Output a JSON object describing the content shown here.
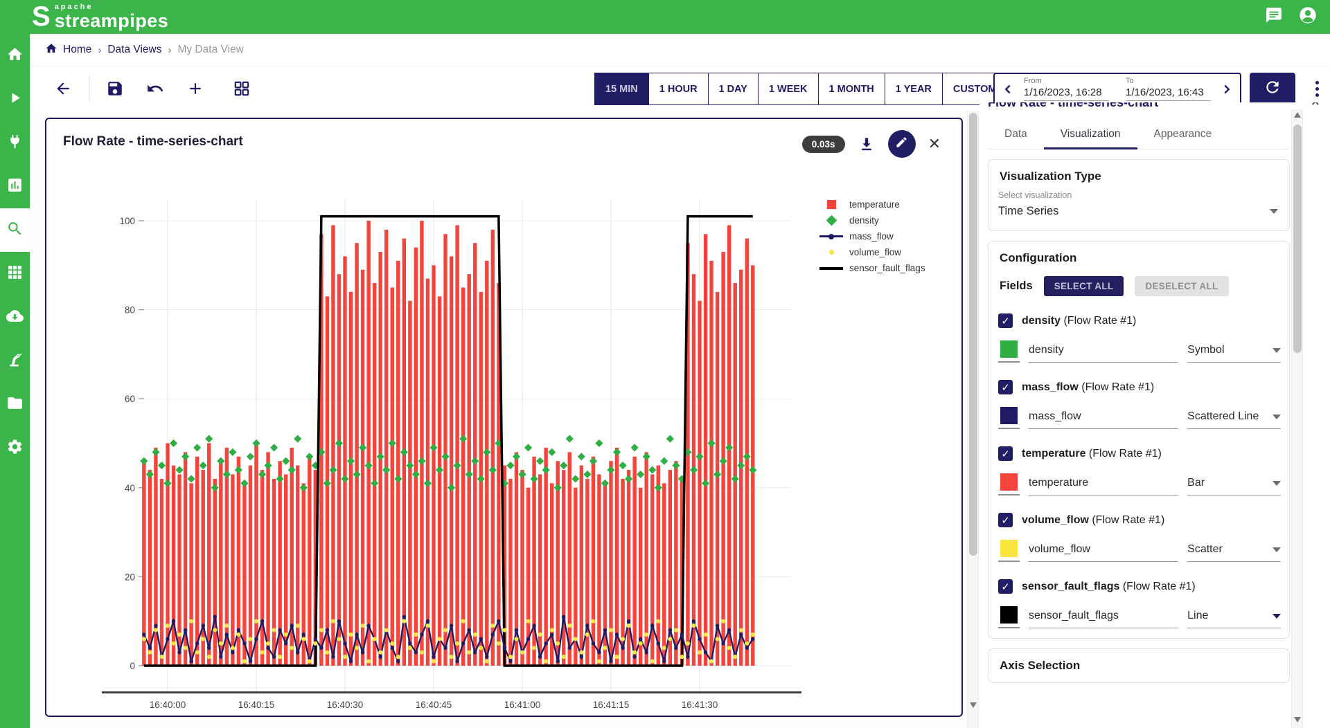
{
  "header": {
    "logo_top": "apache",
    "logo_text": "streampipes"
  },
  "sidebar": {
    "items": [
      {
        "icon": "home-icon",
        "active": false
      },
      {
        "icon": "play-icon",
        "active": false
      },
      {
        "icon": "plug-icon",
        "active": false
      },
      {
        "icon": "bar-chart-icon",
        "active": false
      },
      {
        "icon": "search-icon",
        "active": true
      },
      {
        "icon": "grid-icon",
        "active": false
      },
      {
        "icon": "cloud-download-icon",
        "active": false
      },
      {
        "icon": "robot-arm-icon",
        "active": false
      },
      {
        "icon": "folder-icon",
        "active": false
      },
      {
        "icon": "gear-icon",
        "active": false
      }
    ]
  },
  "breadcrumb": {
    "items": [
      "Home",
      "Data Views",
      "My Data View"
    ],
    "separator": "›"
  },
  "toolbar": {
    "time_buttons": [
      {
        "label": "15 MIN",
        "active": true
      },
      {
        "label": "1 HOUR",
        "active": false
      },
      {
        "label": "1 DAY",
        "active": false
      },
      {
        "label": "1 WEEK",
        "active": false
      },
      {
        "label": "1 MONTH",
        "active": false
      },
      {
        "label": "1 YEAR",
        "active": false
      },
      {
        "label": "CUSTOM",
        "active": false
      }
    ],
    "from_label": "From",
    "from_value": "1/16/2023, 16:28",
    "to_label": "To",
    "to_value": "1/16/2023, 16:43"
  },
  "chart_card": {
    "title": "Flow Rate - time-series-chart",
    "duration_badge": "0.03s"
  },
  "chart_data": {
    "type": "mixed-time-series",
    "title": "Flow Rate - time-series-chart",
    "x_start": "16:39:56",
    "x_interval_seconds": 1,
    "x_tick_labels": [
      "16:40:00",
      "16:40:15",
      "16:40:30",
      "16:40:45",
      "16:41:00",
      "16:41:15",
      "16:41:30"
    ],
    "x_tick_offsets": [
      4,
      19,
      34,
      49,
      64,
      79,
      94
    ],
    "ylim": [
      -6,
      105
    ],
    "yticks": [
      0,
      20,
      40,
      60,
      80,
      100
    ],
    "grid": true,
    "legend_position": "right",
    "series": [
      {
        "name": "temperature",
        "type": "bar",
        "color": "#f4443c",
        "values": [
          46,
          44,
          49,
          42,
          50,
          45,
          43,
          48,
          41,
          47,
          44,
          50,
          42,
          46,
          49,
          43,
          47,
          41,
          45,
          50,
          44,
          48,
          42,
          46,
          43,
          49,
          45,
          41,
          47,
          44,
          97,
          83,
          99,
          88,
          92,
          84,
          95,
          89,
          100,
          86,
          93,
          98,
          85,
          91,
          96,
          82,
          94,
          100,
          87,
          90,
          83,
          97,
          92,
          99,
          85,
          88,
          95,
          84,
          91,
          98,
          86,
          45,
          42,
          48,
          44,
          40,
          47,
          43,
          49,
          41,
          46,
          44,
          48,
          40,
          45,
          42,
          47,
          43,
          41,
          46,
          49,
          42,
          44,
          47,
          40,
          48,
          43,
          45,
          41,
          44,
          46,
          42,
          95,
          88,
          82,
          97,
          91,
          84,
          93,
          99,
          86,
          89,
          96,
          90
        ]
      },
      {
        "name": "density",
        "type": "symbol",
        "color": "#2fae44",
        "values": [
          46,
          43,
          48,
          45,
          41,
          50,
          44,
          47,
          42,
          49,
          45,
          51,
          40,
          46,
          43,
          48,
          44,
          41,
          47,
          50,
          43,
          45,
          49,
          42,
          46,
          44,
          51,
          40,
          47,
          45,
          48,
          41,
          44,
          50,
          42,
          46,
          43,
          49,
          45,
          41,
          47,
          44,
          50,
          42,
          48,
          45,
          43,
          46,
          41,
          49,
          44,
          47,
          40,
          45,
          51,
          43,
          46,
          42,
          48,
          44,
          50,
          41,
          45,
          47,
          43,
          49,
          42,
          46,
          44,
          48,
          40,
          45,
          51,
          42,
          47,
          43,
          46,
          50,
          41,
          44,
          48,
          45,
          42,
          49,
          43,
          47,
          44,
          40,
          46,
          51,
          45,
          42,
          48,
          44,
          47,
          41,
          50,
          43,
          46,
          49,
          42,
          45,
          47,
          44
        ]
      },
      {
        "name": "mass_flow",
        "type": "scattered-line",
        "color": "#1f1b64",
        "values": [
          7,
          4,
          9,
          2,
          6,
          10,
          3,
          8,
          1,
          5,
          9,
          4,
          11,
          2,
          7,
          3,
          8,
          5,
          1,
          6,
          10,
          4,
          2,
          8,
          5,
          9,
          3,
          7,
          1,
          6,
          4,
          8,
          2,
          10,
          5,
          1,
          7,
          3,
          9,
          6,
          2,
          8,
          4,
          1,
          11,
          5,
          3,
          7,
          10,
          2,
          6,
          4,
          9,
          1,
          5,
          8,
          3,
          6,
          2,
          7,
          10,
          4,
          1,
          8,
          3,
          6,
          9,
          2,
          5,
          7,
          1,
          11,
          4,
          6,
          2,
          9,
          5,
          3,
          8,
          1,
          7,
          4,
          10,
          2,
          6,
          3,
          9,
          5,
          1,
          8,
          4,
          7,
          2,
          10,
          6,
          3,
          1,
          9,
          5,
          8,
          2,
          7,
          4,
          6
        ]
      },
      {
        "name": "volume_flow",
        "type": "scatter",
        "color": "#f9e53f",
        "values": [
          6,
          3,
          8,
          2,
          9,
          5,
          7,
          4,
          10,
          3,
          6,
          2,
          8,
          5,
          9,
          4,
          7,
          1,
          6,
          10,
          3,
          5,
          8,
          2,
          7,
          4,
          9,
          6,
          1,
          5,
          8,
          3,
          10,
          6,
          2,
          7,
          4,
          9,
          1,
          6,
          3,
          8,
          5,
          2,
          10,
          4,
          7,
          3,
          9,
          1,
          6,
          8,
          2,
          5,
          10,
          3,
          7,
          4,
          1,
          9,
          5,
          8,
          2,
          6,
          3,
          10,
          4,
          7,
          1,
          8,
          5,
          2,
          9,
          6,
          3,
          7,
          10,
          1,
          4,
          8,
          2,
          6,
          9,
          3,
          5,
          7,
          1,
          10,
          4,
          6,
          8,
          2,
          5,
          9,
          3,
          7,
          1,
          6,
          10,
          4,
          2,
          8,
          5,
          7
        ]
      },
      {
        "name": "sensor_fault_flags",
        "type": "line",
        "color": "#000000",
        "low_value": 0,
        "high_value": 101,
        "high_ranges": [
          [
            30,
            60
          ],
          [
            92,
            103
          ]
        ]
      }
    ]
  },
  "panel": {
    "title": "Flow Rate - time-series-chart",
    "tabs": [
      {
        "label": "Data",
        "active": false
      },
      {
        "label": "Visualization",
        "active": true
      },
      {
        "label": "Appearance",
        "active": false
      }
    ],
    "visualization_type": {
      "heading": "Visualization Type",
      "select_label": "Select visualization",
      "value": "Time Series"
    },
    "configuration": {
      "heading": "Configuration",
      "fields_label": "Fields",
      "select_all": "SELECT ALL",
      "deselect_all": "DESELECT ALL",
      "fields": [
        {
          "name": "density",
          "source": "(Flow Rate #1)",
          "checked": true,
          "color": "#2fae44",
          "display": "Symbol",
          "caret_active": false
        },
        {
          "name": "mass_flow",
          "source": "(Flow Rate #1)",
          "checked": true,
          "color": "#1f1b64",
          "display": "Scattered Line",
          "caret_active": false
        },
        {
          "name": "temperature",
          "source": "(Flow Rate #1)",
          "checked": true,
          "color": "#f4443c",
          "display": "Bar",
          "caret_active": false
        },
        {
          "name": "volume_flow",
          "source": "(Flow Rate #1)",
          "checked": true,
          "color": "#f9e53f",
          "display": "Scatter",
          "caret_active": false
        },
        {
          "name": "sensor_fault_flags",
          "source": "(Flow Rate #1)",
          "checked": true,
          "color": "#000000",
          "display": "Line",
          "caret_active": true
        }
      ]
    },
    "axis_selection_heading": "Axis Selection"
  },
  "colors": {
    "brand_green": "#3bb44a",
    "navy": "#1f1a63",
    "bar_red": "#f4443c",
    "dot_yellow": "#f9e53f",
    "diamond_green": "#2fae44"
  }
}
